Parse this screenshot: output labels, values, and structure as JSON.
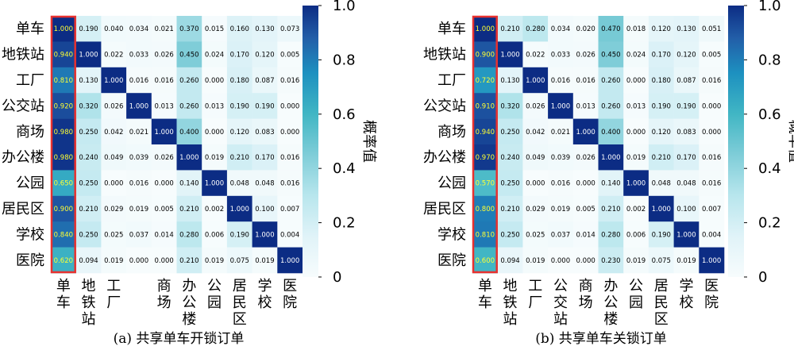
{
  "chart_data": [
    {
      "type": "heatmap",
      "caption": "(a) 共享单车开锁订单",
      "row_labels": [
        "单车",
        "地铁站",
        "工厂",
        "公交站",
        "商场",
        "办公楼",
        "公园",
        "居民区",
        "学校",
        "医院"
      ],
      "col_labels": [
        "单车",
        "地铁站",
        "工厂",
        "",
        "商场",
        "办公楼",
        "公园",
        "居民区",
        "学校",
        "医院"
      ],
      "values": [
        [
          1.0,
          0.19,
          0.04,
          0.034,
          0.021,
          0.37,
          0.015,
          0.16,
          0.13,
          0.073
        ],
        [
          0.94,
          1.0,
          0.022,
          0.033,
          0.026,
          0.45,
          0.024,
          0.17,
          0.12,
          0.005
        ],
        [
          0.81,
          0.13,
          1.0,
          0.016,
          0.016,
          0.26,
          0.0,
          0.18,
          0.087,
          0.016
        ],
        [
          0.92,
          0.32,
          0.026,
          1.0,
          0.013,
          0.26,
          0.013,
          0.19,
          0.19,
          0.0
        ],
        [
          0.98,
          0.25,
          0.042,
          0.021,
          1.0,
          0.4,
          0.0,
          0.12,
          0.083,
          0.0
        ],
        [
          0.98,
          0.24,
          0.049,
          0.039,
          0.026,
          1.0,
          0.019,
          0.21,
          0.17,
          0.016
        ],
        [
          0.65,
          0.25,
          0.0,
          0.016,
          0.0,
          0.14,
          1.0,
          0.048,
          0.048,
          0.016
        ],
        [
          0.9,
          0.21,
          0.029,
          0.019,
          0.005,
          0.21,
          0.002,
          1.0,
          0.1,
          0.007
        ],
        [
          0.84,
          0.25,
          0.025,
          0.037,
          0.014,
          0.28,
          0.006,
          0.19,
          1.0,
          0.004
        ],
        [
          0.62,
          0.094,
          0.019,
          0.0,
          0.0,
          0.21,
          0.019,
          0.075,
          0.019,
          1.0
        ]
      ],
      "highlight_column": 0,
      "colorbar": {
        "label": "概率值",
        "range": [
          0,
          1
        ],
        "ticks": [
          "0",
          "0.2",
          "0.4",
          "0.6",
          "0.8",
          "1.0"
        ]
      }
    },
    {
      "type": "heatmap",
      "caption": "(b) 共享单车关锁订单",
      "row_labels": [
        "单车",
        "地铁站",
        "工厂",
        "公交站",
        "商场",
        "办公楼",
        "公园",
        "居民区",
        "学校",
        "医院"
      ],
      "col_labels": [
        "单车",
        "地铁站",
        "工厂",
        "公交站",
        "商场",
        "办公楼",
        "公园",
        "居民区",
        "学校",
        "医院"
      ],
      "values": [
        [
          1.0,
          0.21,
          0.28,
          0.034,
          0.02,
          0.47,
          0.018,
          0.12,
          0.13,
          0.051
        ],
        [
          0.9,
          1.0,
          0.022,
          0.033,
          0.026,
          0.45,
          0.024,
          0.17,
          0.12,
          0.005
        ],
        [
          0.72,
          0.13,
          1.0,
          0.016,
          0.016,
          0.26,
          0.0,
          0.18,
          0.087,
          0.016
        ],
        [
          0.91,
          0.32,
          0.026,
          1.0,
          0.013,
          0.26,
          0.013,
          0.19,
          0.19,
          0.0
        ],
        [
          0.94,
          0.25,
          0.042,
          0.021,
          1.0,
          0.4,
          0.0,
          0.12,
          0.083,
          0.0
        ],
        [
          0.97,
          0.24,
          0.049,
          0.039,
          0.026,
          1.0,
          0.019,
          0.21,
          0.17,
          0.016
        ],
        [
          0.57,
          0.25,
          0.0,
          0.016,
          0.0,
          0.14,
          1.0,
          0.048,
          0.048,
          0.016
        ],
        [
          0.8,
          0.21,
          0.029,
          0.019,
          0.005,
          0.21,
          0.002,
          1.0,
          0.1,
          0.007
        ],
        [
          0.81,
          0.25,
          0.025,
          0.037,
          0.014,
          0.28,
          0.006,
          0.19,
          1.0,
          0.004
        ],
        [
          0.6,
          0.094,
          0.019,
          0.0,
          0.0,
          0.23,
          0.019,
          0.075,
          0.019,
          1.0
        ]
      ],
      "highlight_column": 0,
      "colorbar": {
        "label": "概率值",
        "range": [
          0,
          1
        ],
        "ticks": [
          "0",
          "0.2",
          "0.4",
          "0.6",
          "0.8",
          "1.0"
        ]
      }
    }
  ],
  "colors": {
    "low": "#f7fcfd",
    "mid": "#41b6c4",
    "high": "#0c2c84",
    "highlight_border": "#e8312f",
    "highlight_text": "#ffff33"
  }
}
